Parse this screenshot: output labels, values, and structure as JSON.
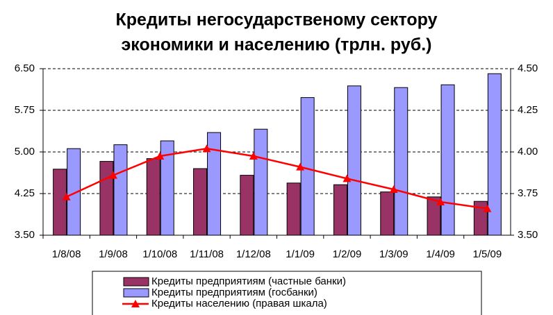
{
  "chart_data": {
    "type": "bar",
    "title": [
      "Кредиты негосударственому сектору",
      "экономики и населению (трлн. руб.)"
    ],
    "categories": [
      "1/8/08",
      "1/9/08",
      "1/10/08",
      "1/11/08",
      "1/12/08",
      "1/1/09",
      "1/2/09",
      "1/3/09",
      "1/4/09",
      "1/5/09"
    ],
    "series": [
      {
        "name": "Кредиты предприятиям (частные банки)",
        "color": "#993366",
        "type": "bar",
        "values": [
          4.69,
          4.83,
          4.88,
          4.7,
          4.58,
          4.44,
          4.41,
          4.28,
          4.19,
          4.11
        ]
      },
      {
        "name": "Кредиты предприятиям (госбанки)",
        "color": "#9999ff",
        "type": "bar",
        "values": [
          5.06,
          5.13,
          5.2,
          5.35,
          5.41,
          5.98,
          6.19,
          6.16,
          6.21,
          6.41
        ]
      },
      {
        "name": "Кредиты населению (правая шкала)",
        "color": "#ff0000",
        "type": "line",
        "axis": "y2",
        "values": [
          3.73,
          3.86,
          3.975,
          4.02,
          3.975,
          3.91,
          3.84,
          3.775,
          3.7,
          3.66
        ]
      }
    ],
    "ylim": [
      3.5,
      6.5
    ],
    "yticks": [
      {
        "value": 3.5,
        "label": "3.50"
      },
      4.25,
      {
        "value": 5,
        "label": "5.00"
      },
      5.75,
      {
        "value": 6.5,
        "label": "6.50"
      }
    ],
    "y2lim": [
      3.5,
      4.5
    ],
    "y2ticks": [
      {
        "value": 3.5,
        "label": "3.50"
      },
      3.75,
      {
        "value": 4,
        "label": "4.00"
      },
      4.25,
      {
        "value": 4.5,
        "label": "4.50"
      }
    ],
    "grid": true,
    "legend": "bottom"
  }
}
